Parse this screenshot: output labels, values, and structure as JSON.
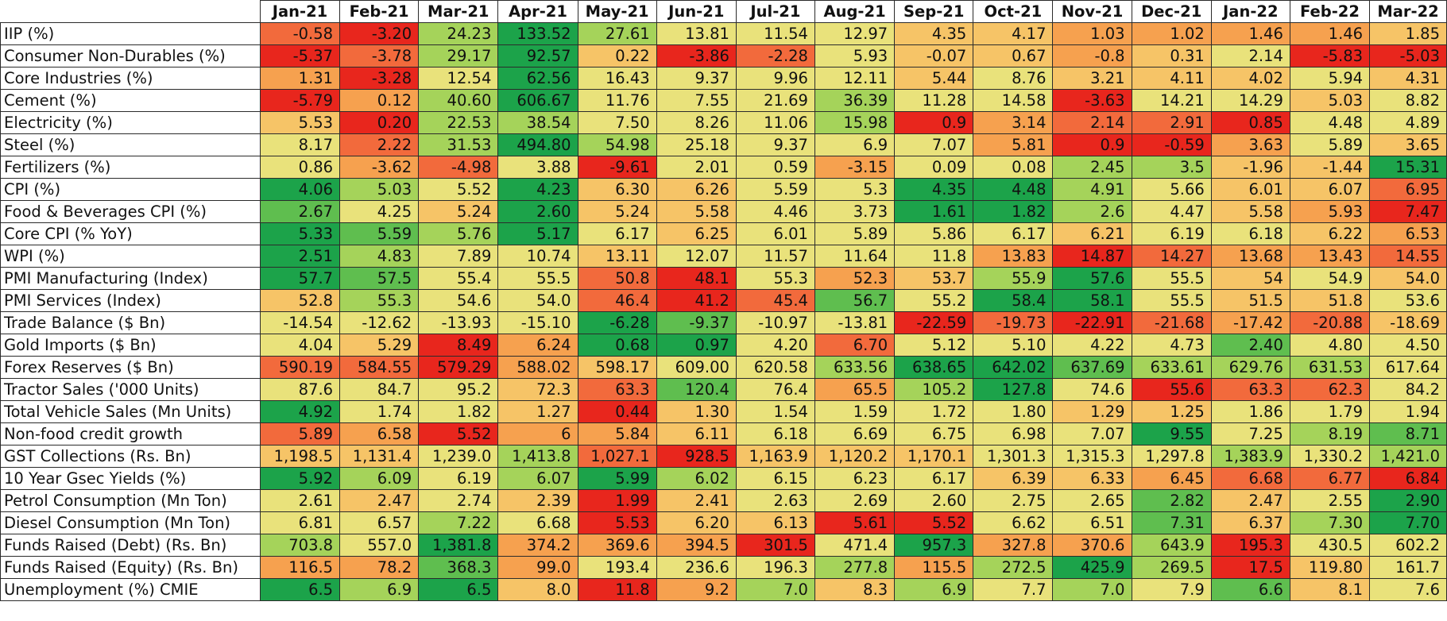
{
  "months": [
    "Jan-21",
    "Feb-21",
    "Mar-21",
    "Apr-21",
    "May-21",
    "Jun-21",
    "Jul-21",
    "Aug-21",
    "Sep-21",
    "Oct-21",
    "Nov-21",
    "Dec-21",
    "Jan-22",
    "Feb-22",
    "Mar-22"
  ],
  "colors": {
    "G": "#1ca34a",
    "g": "#5fbe4f",
    "lg": "#a5d35a",
    "y": "#e9e27b",
    "lo": "#f6c467",
    "o": "#f6a14f",
    "r": "#f26a3c",
    "R": "#e8261d"
  },
  "rows": [
    {
      "label": "IIP (%)",
      "values": [
        "-0.58",
        "-3.20",
        "24.23",
        "133.52",
        "27.61",
        "13.81",
        "11.54",
        "12.97",
        "4.35",
        "4.17",
        "1.03",
        "1.02",
        "1.46",
        "1.46",
        "1.85"
      ],
      "colors": [
        "r",
        "R",
        "lg",
        "G",
        "lg",
        "y",
        "y",
        "y",
        "lo",
        "lo",
        "o",
        "o",
        "o",
        "o",
        "lo"
      ]
    },
    {
      "label": "Consumer Non-Durables (%)",
      "values": [
        "-5.37",
        "-3.78",
        "29.17",
        "92.57",
        "0.22",
        "-3.86",
        "-2.28",
        "5.93",
        "-0.07",
        "0.67",
        "-0.8",
        "0.31",
        "2.14",
        "-5.83",
        "-5.03"
      ],
      "colors": [
        "R",
        "r",
        "lg",
        "G",
        "lo",
        "R",
        "r",
        "y",
        "lo",
        "lo",
        "o",
        "lo",
        "y",
        "R",
        "R"
      ]
    },
    {
      "label": "Core Industries (%)",
      "values": [
        "1.31",
        "-3.28",
        "12.54",
        "62.56",
        "16.43",
        "9.37",
        "9.96",
        "12.11",
        "5.44",
        "8.76",
        "3.21",
        "4.11",
        "4.02",
        "5.94",
        "4.31"
      ],
      "colors": [
        "o",
        "R",
        "y",
        "G",
        "y",
        "y",
        "y",
        "y",
        "lo",
        "y",
        "lo",
        "lo",
        "lo",
        "y",
        "lo"
      ]
    },
    {
      "label": "Cement (%)",
      "values": [
        "-5.79",
        "0.12",
        "40.60",
        "606.67",
        "11.76",
        "7.55",
        "21.69",
        "36.39",
        "11.28",
        "14.58",
        "-3.63",
        "14.21",
        "14.29",
        "5.03",
        "8.82"
      ],
      "colors": [
        "R",
        "o",
        "lg",
        "G",
        "y",
        "y",
        "y",
        "lg",
        "y",
        "y",
        "R",
        "y",
        "y",
        "lo",
        "y"
      ]
    },
    {
      "label": "Electricity (%)",
      "values": [
        "5.53",
        "0.20",
        "22.53",
        "38.54",
        "7.50",
        "8.26",
        "11.06",
        "15.98",
        "0.9",
        "3.14",
        "2.14",
        "2.91",
        "0.85",
        "4.48",
        "4.89"
      ],
      "colors": [
        "lo",
        "R",
        "lg",
        "lg",
        "y",
        "y",
        "y",
        "lg",
        "R",
        "o",
        "r",
        "r",
        "R",
        "y",
        "y"
      ]
    },
    {
      "label": "Steel (%)",
      "values": [
        "8.17",
        "2.22",
        "31.53",
        "494.80",
        "54.98",
        "25.18",
        "9.37",
        "6.9",
        "7.07",
        "5.81",
        "0.9",
        "-0.59",
        "3.63",
        "5.89",
        "3.65"
      ],
      "colors": [
        "y",
        "r",
        "lg",
        "G",
        "lg",
        "y",
        "y",
        "y",
        "y",
        "o",
        "R",
        "R",
        "o",
        "y",
        "lo"
      ]
    },
    {
      "label": "Fertilizers (%)",
      "values": [
        "0.86",
        "-3.62",
        "-4.98",
        "3.88",
        "-9.61",
        "2.01",
        "0.59",
        "-3.15",
        "0.09",
        "0.08",
        "2.45",
        "3.5",
        "-1.96",
        "-1.44",
        "15.31"
      ],
      "colors": [
        "y",
        "o",
        "r",
        "y",
        "R",
        "y",
        "y",
        "o",
        "y",
        "y",
        "lg",
        "lg",
        "lo",
        "lo",
        "G"
      ]
    },
    {
      "label": "CPI (%)",
      "values": [
        "4.06",
        "5.03",
        "5.52",
        "4.23",
        "6.30",
        "6.26",
        "5.59",
        "5.3",
        "4.35",
        "4.48",
        "4.91",
        "5.66",
        "6.01",
        "6.07",
        "6.95"
      ],
      "colors": [
        "G",
        "lg",
        "y",
        "G",
        "lo",
        "lo",
        "y",
        "y",
        "G",
        "G",
        "lg",
        "y",
        "lo",
        "lo",
        "r"
      ]
    },
    {
      "label": "Food & Beverages CPI (%)",
      "values": [
        "2.67",
        "4.25",
        "5.24",
        "2.60",
        "5.24",
        "5.58",
        "4.46",
        "3.73",
        "1.61",
        "1.82",
        "2.6",
        "4.47",
        "5.58",
        "5.93",
        "7.47"
      ],
      "colors": [
        "g",
        "y",
        "lo",
        "G",
        "lo",
        "lo",
        "y",
        "y",
        "G",
        "G",
        "lg",
        "y",
        "lo",
        "o",
        "R"
      ]
    },
    {
      "label": "Core CPI (% YoY)",
      "values": [
        "5.33",
        "5.59",
        "5.76",
        "5.17",
        "6.17",
        "6.25",
        "6.01",
        "5.89",
        "5.86",
        "6.17",
        "6.21",
        "6.19",
        "6.18",
        "6.22",
        "6.53"
      ],
      "colors": [
        "G",
        "g",
        "lg",
        "G",
        "y",
        "lo",
        "y",
        "y",
        "y",
        "y",
        "lo",
        "y",
        "y",
        "lo",
        "o"
      ]
    },
    {
      "label": "WPI (%)",
      "values": [
        "2.51",
        "4.83",
        "7.89",
        "10.74",
        "13.11",
        "12.07",
        "11.57",
        "11.64",
        "11.8",
        "13.83",
        "14.87",
        "14.27",
        "13.68",
        "13.43",
        "14.55"
      ],
      "colors": [
        "G",
        "lg",
        "y",
        "y",
        "lo",
        "y",
        "y",
        "y",
        "y",
        "o",
        "R",
        "r",
        "o",
        "o",
        "r"
      ]
    },
    {
      "label": "PMI Manufacturing (Index)",
      "values": [
        "57.7",
        "57.5",
        "55.4",
        "55.5",
        "50.8",
        "48.1",
        "55.3",
        "52.3",
        "53.7",
        "55.9",
        "57.6",
        "55.5",
        "54",
        "54.9",
        "54.0"
      ],
      "colors": [
        "G",
        "g",
        "y",
        "y",
        "r",
        "R",
        "y",
        "o",
        "lo",
        "lg",
        "G",
        "y",
        "lo",
        "y",
        "lo"
      ]
    },
    {
      "label": "PMI Services (Index)",
      "values": [
        "52.8",
        "55.3",
        "54.6",
        "54.0",
        "46.4",
        "41.2",
        "45.4",
        "56.7",
        "55.2",
        "58.4",
        "58.1",
        "55.5",
        "51.5",
        "51.8",
        "53.6"
      ],
      "colors": [
        "lo",
        "lg",
        "y",
        "y",
        "r",
        "R",
        "r",
        "g",
        "y",
        "G",
        "G",
        "y",
        "lo",
        "lo",
        "y"
      ]
    },
    {
      "label": "Trade Balance ($ Bn)",
      "values": [
        "-14.54",
        "-12.62",
        "-13.93",
        "-15.10",
        "-6.28",
        "-9.37",
        "-10.97",
        "-13.81",
        "-22.59",
        "-19.73",
        "-22.91",
        "-21.68",
        "-17.42",
        "-20.88",
        "-18.69"
      ],
      "colors": [
        "y",
        "y",
        "y",
        "y",
        "G",
        "g",
        "y",
        "y",
        "R",
        "r",
        "R",
        "r",
        "o",
        "r",
        "lo"
      ]
    },
    {
      "label": "Gold Imports ($ Bn)",
      "values": [
        "4.04",
        "5.29",
        "8.49",
        "6.24",
        "0.68",
        "0.97",
        "4.20",
        "6.70",
        "5.12",
        "5.10",
        "4.22",
        "4.73",
        "2.40",
        "4.80",
        "4.50"
      ],
      "colors": [
        "y",
        "lo",
        "R",
        "o",
        "G",
        "G",
        "y",
        "r",
        "y",
        "y",
        "y",
        "y",
        "g",
        "y",
        "y"
      ]
    },
    {
      "label": "Forex Reserves ($ Bn)",
      "values": [
        "590.19",
        "584.55",
        "579.29",
        "588.02",
        "598.17",
        "609.00",
        "620.58",
        "633.56",
        "638.65",
        "642.02",
        "637.69",
        "633.61",
        "629.76",
        "631.53",
        "617.64"
      ],
      "colors": [
        "r",
        "r",
        "R",
        "o",
        "lo",
        "y",
        "y",
        "lg",
        "G",
        "G",
        "g",
        "lg",
        "lg",
        "lg",
        "y"
      ]
    },
    {
      "label": "Tractor Sales ('000 Units)",
      "values": [
        "87.6",
        "84.7",
        "95.2",
        "72.3",
        "63.3",
        "120.4",
        "76.4",
        "65.5",
        "105.2",
        "127.8",
        "74.6",
        "55.6",
        "63.3",
        "62.3",
        "84.2"
      ],
      "colors": [
        "y",
        "y",
        "y",
        "lo",
        "r",
        "g",
        "y",
        "o",
        "lg",
        "G",
        "y",
        "R",
        "r",
        "r",
        "y"
      ]
    },
    {
      "label": "Total Vehicle Sales (Mn Units)",
      "values": [
        "4.92",
        "1.74",
        "1.82",
        "1.27",
        "0.44",
        "1.30",
        "1.54",
        "1.59",
        "1.72",
        "1.80",
        "1.29",
        "1.25",
        "1.86",
        "1.79",
        "1.94"
      ],
      "colors": [
        "G",
        "y",
        "y",
        "lo",
        "R",
        "lo",
        "y",
        "y",
        "y",
        "y",
        "lo",
        "lo",
        "y",
        "y",
        "y"
      ]
    },
    {
      "label": "Non-food credit growth",
      "values": [
        "5.89",
        "6.58",
        "5.52",
        "6",
        "5.84",
        "6.11",
        "6.18",
        "6.69",
        "6.75",
        "6.98",
        "7.07",
        "9.55",
        "7.25",
        "8.19",
        "8.71"
      ],
      "colors": [
        "r",
        "o",
        "R",
        "o",
        "o",
        "lo",
        "y",
        "y",
        "y",
        "y",
        "y",
        "G",
        "y",
        "lg",
        "g"
      ]
    },
    {
      "label": "GST Collections (Rs. Bn)",
      "values": [
        "1,198.5",
        "1,131.4",
        "1,239.0",
        "1,413.8",
        "1,027.1",
        "928.5",
        "1,163.9",
        "1,120.2",
        "1,170.1",
        "1,301.3",
        "1,315.3",
        "1,297.8",
        "1,383.9",
        "1,330.2",
        "1,421.0"
      ],
      "colors": [
        "lo",
        "lo",
        "y",
        "lg",
        "r",
        "R",
        "lo",
        "lo",
        "lo",
        "y",
        "y",
        "y",
        "lg",
        "y",
        "lg"
      ]
    },
    {
      "label": "10 Year Gsec Yields (%)",
      "values": [
        "5.92",
        "6.09",
        "6.19",
        "6.07",
        "5.99",
        "6.02",
        "6.15",
        "6.23",
        "6.17",
        "6.39",
        "6.33",
        "6.45",
        "6.68",
        "6.77",
        "6.84"
      ],
      "colors": [
        "G",
        "lg",
        "y",
        "lg",
        "G",
        "lg",
        "y",
        "y",
        "y",
        "lo",
        "lo",
        "o",
        "r",
        "r",
        "R"
      ]
    },
    {
      "label": "Petrol Consumption (Mn Ton)",
      "values": [
        "2.61",
        "2.47",
        "2.74",
        "2.39",
        "1.99",
        "2.41",
        "2.63",
        "2.69",
        "2.60",
        "2.75",
        "2.65",
        "2.82",
        "2.47",
        "2.55",
        "2.90"
      ],
      "colors": [
        "y",
        "lo",
        "y",
        "lo",
        "R",
        "lo",
        "y",
        "y",
        "y",
        "y",
        "y",
        "g",
        "lo",
        "y",
        "G"
      ]
    },
    {
      "label": "Diesel Consumption (Mn Ton)",
      "values": [
        "6.81",
        "6.57",
        "7.22",
        "6.68",
        "5.53",
        "6.20",
        "6.13",
        "5.61",
        "5.52",
        "6.62",
        "6.51",
        "7.31",
        "6.37",
        "7.30",
        "7.70"
      ],
      "colors": [
        "y",
        "y",
        "lg",
        "y",
        "R",
        "lo",
        "lo",
        "R",
        "R",
        "y",
        "y",
        "g",
        "lo",
        "lg",
        "G"
      ]
    },
    {
      "label": "Funds Raised (Debt) (Rs. Bn)",
      "values": [
        "703.8",
        "557.0",
        "1,381.8",
        "374.2",
        "369.6",
        "394.5",
        "301.5",
        "471.4",
        "957.3",
        "327.8",
        "370.6",
        "643.9",
        "195.3",
        "430.5",
        "602.2"
      ],
      "colors": [
        "lg",
        "y",
        "G",
        "o",
        "o",
        "o",
        "R",
        "y",
        "G",
        "o",
        "o",
        "lg",
        "R",
        "y",
        "y"
      ]
    },
    {
      "label": "Funds Raised (Equity) (Rs. Bn)",
      "values": [
        "116.5",
        "78.2",
        "368.3",
        "99.0",
        "193.4",
        "236.6",
        "196.3",
        "277.8",
        "115.5",
        "272.5",
        "425.9",
        "269.5",
        "17.5",
        "119.80",
        "161.7"
      ],
      "colors": [
        "o",
        "o",
        "g",
        "o",
        "y",
        "y",
        "y",
        "lg",
        "o",
        "lg",
        "G",
        "lg",
        "R",
        "lo",
        "y"
      ]
    },
    {
      "label": "Unemployment (%) CMIE",
      "values": [
        "6.5",
        "6.9",
        "6.5",
        "8.0",
        "11.8",
        "9.2",
        "7.0",
        "8.3",
        "6.9",
        "7.7",
        "7.0",
        "7.9",
        "6.6",
        "8.1",
        "7.6"
      ],
      "colors": [
        "G",
        "lg",
        "G",
        "lo",
        "R",
        "o",
        "lg",
        "lo",
        "lg",
        "y",
        "lg",
        "y",
        "g",
        "lo",
        "y"
      ]
    }
  ]
}
